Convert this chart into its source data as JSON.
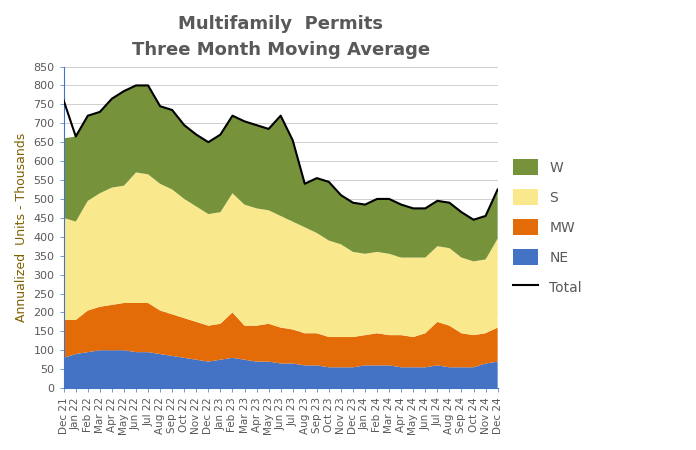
{
  "title": "Multifamily  Permits",
  "subtitle": "Three Month Moving Average",
  "ylabel": "Annualized  Units - Thousands",
  "ylim": [
    0,
    850
  ],
  "labels": [
    "Dec 21",
    "Jan 22",
    "Feb 22",
    "Mar 22",
    "Apr 22",
    "May 22",
    "Jun 22",
    "Jul 22",
    "Aug 22",
    "Sep 22",
    "Oct 22",
    "Nov 22",
    "Dec 22",
    "Jan 23",
    "Feb 23",
    "Mar 23",
    "Apr 23",
    "May 23",
    "Jun 23",
    "Jul 23",
    "Aug 23",
    "Sep 23",
    "Oct 23",
    "Nov 23",
    "Dec 23",
    "Jan 24",
    "Feb 24",
    "Mar 24",
    "Apr 24",
    "May 24",
    "Jun 24",
    "Jul 24",
    "Aug 24",
    "Sep 24",
    "Oct 24",
    "Nov 24",
    "Dec 24"
  ],
  "NE": [
    80,
    90,
    95,
    100,
    100,
    100,
    95,
    95,
    90,
    85,
    80,
    75,
    70,
    75,
    80,
    75,
    70,
    70,
    65,
    65,
    60,
    60,
    55,
    55,
    55,
    60,
    60,
    60,
    55,
    55,
    55,
    60,
    55,
    55,
    55,
    65,
    70
  ],
  "MW": [
    100,
    90,
    110,
    115,
    120,
    125,
    130,
    130,
    115,
    110,
    105,
    100,
    95,
    95,
    120,
    90,
    95,
    100,
    95,
    90,
    85,
    85,
    80,
    80,
    80,
    80,
    85,
    80,
    85,
    80,
    90,
    115,
    110,
    90,
    85,
    80,
    90
  ],
  "S": [
    270,
    260,
    290,
    300,
    310,
    310,
    345,
    340,
    335,
    330,
    315,
    305,
    295,
    295,
    315,
    320,
    310,
    300,
    295,
    285,
    280,
    265,
    255,
    245,
    225,
    215,
    215,
    215,
    205,
    210,
    200,
    200,
    205,
    200,
    195,
    195,
    235
  ],
  "W": [
    210,
    225,
    225,
    215,
    235,
    250,
    230,
    235,
    205,
    210,
    195,
    190,
    190,
    205,
    205,
    220,
    220,
    215,
    265,
    215,
    115,
    145,
    155,
    130,
    130,
    130,
    140,
    145,
    140,
    130,
    130,
    120,
    120,
    120,
    110,
    115,
    130
  ],
  "Total": [
    760,
    665,
    720,
    730,
    765,
    785,
    800,
    800,
    745,
    735,
    695,
    670,
    650,
    670,
    720,
    705,
    695,
    685,
    720,
    655,
    540,
    555,
    545,
    510,
    490,
    485,
    500,
    500,
    485,
    475,
    475,
    495,
    490,
    465,
    445,
    455,
    525
  ],
  "colors": {
    "NE": "#4472C4",
    "MW": "#E36C09",
    "S": "#FAE88C",
    "W": "#76933C",
    "Total": "#000000"
  },
  "title_color": "#595959",
  "axis_label_color": "#7F6000",
  "tick_color": "#595959",
  "legend_label_color": "#595959",
  "title_fontsize": 13,
  "subtitle_fontsize": 11,
  "ylabel_fontsize": 9,
  "tick_fontsize": 8,
  "legend_fontsize": 10,
  "fig_bg": "#FFFFFF",
  "plot_bg": "#FFFFFF",
  "grid_color": "#D0D0D0",
  "spine_color": "#4472C4"
}
